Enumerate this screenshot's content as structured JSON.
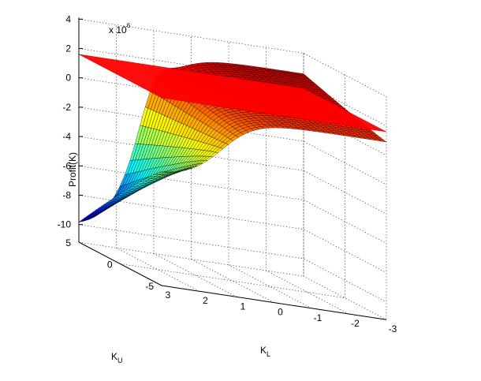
{
  "chart_data": {
    "type": "surface3d",
    "title": "",
    "zlabel": "Profit(K)",
    "xlabel": {
      "main": "K",
      "sub": "L"
    },
    "ylabel": {
      "main": "K",
      "sub": "U"
    },
    "z_exponent": {
      "base": "x 10",
      "power": "6"
    },
    "x_ticks": [
      "3",
      "2",
      "1",
      "0",
      "-1",
      "-2",
      "-3"
    ],
    "y_ticks": [
      "5",
      "0",
      "-5"
    ],
    "z_ticks": [
      "4",
      "2",
      "0",
      "-2",
      "-4",
      "-6",
      "-8",
      "-10"
    ],
    "x_range": [
      -3,
      3
    ],
    "y_range": [
      -5,
      5
    ],
    "z_range": [
      -10,
      4
    ],
    "z_scale": 1000000,
    "grid": true,
    "plane_level": 1.6,
    "plane_color": "#ff0000",
    "colormap": "jet"
  }
}
